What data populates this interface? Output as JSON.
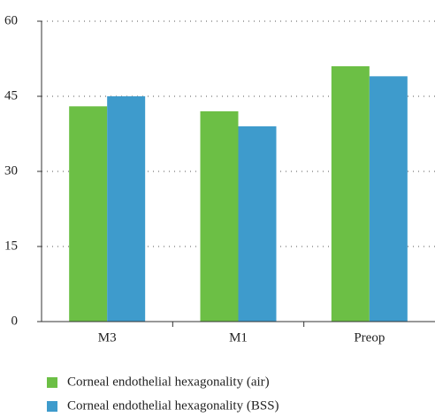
{
  "chart_data": {
    "type": "bar",
    "categories": [
      "M3",
      "M1",
      "Preop"
    ],
    "series": [
      {
        "name": "Corneal endothelial hexagonality (air)",
        "color": "#6cbf45",
        "values": [
          43,
          42,
          51
        ]
      },
      {
        "name": "Corneal endothelial hexagonality (BSS)",
        "color": "#3e9bcc",
        "values": [
          45,
          39,
          49
        ]
      }
    ],
    "ylim": [
      0,
      60
    ],
    "yticks": [
      0,
      15,
      30,
      45,
      60
    ],
    "grid": true
  }
}
